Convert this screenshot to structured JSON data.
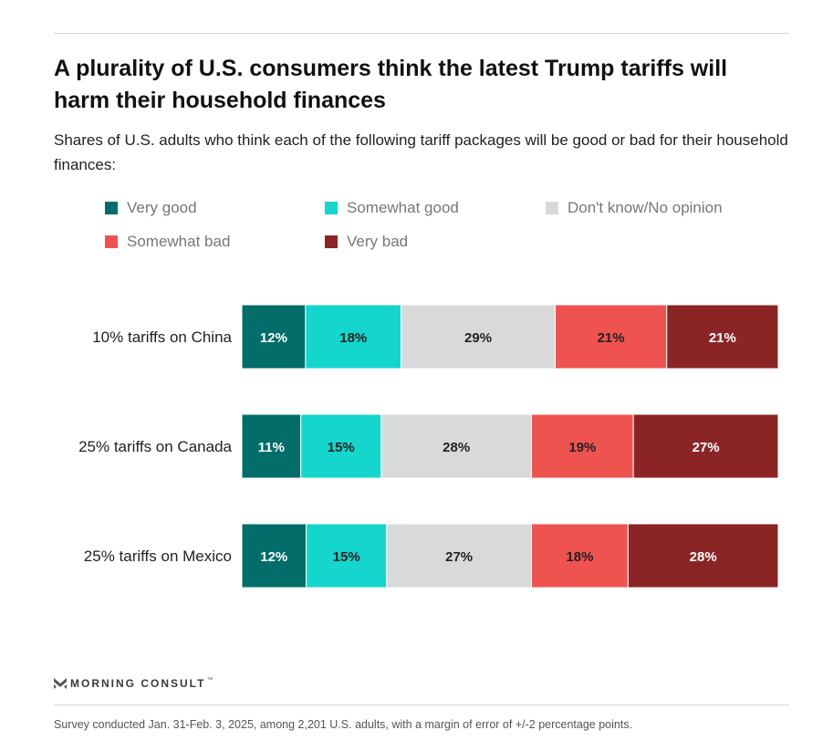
{
  "chart_title": "A plurality of U.S. consumers think the latest Trump tariffs will harm their household finances",
  "chart_subtitle": "Shares of U.S. adults who think each of the following tariff packages will be good or bad for their household finances:",
  "colors": {
    "very_good": "#036d6a",
    "somewhat_good": "#14d6cc",
    "dont_know": "#d8dada",
    "somewhat_bad": "#ef5350",
    "very_bad": "#8b2525"
  },
  "chart_data": {
    "type": "bar",
    "orientation": "horizontal",
    "stacked": true,
    "normalized": true,
    "categories": [
      "10% tariffs on China",
      "25% tariffs on Canada",
      "25% tariffs on Mexico"
    ],
    "series": [
      {
        "name": "Very good",
        "color": "#036d6a",
        "label_color": "#ffffff",
        "values": [
          12,
          11,
          12
        ]
      },
      {
        "name": "Somewhat good",
        "color": "#14d6cc",
        "label_color": "#222222",
        "values": [
          18,
          15,
          15
        ]
      },
      {
        "name": "Don't know/No opinion",
        "color": "#d8dada",
        "label_color": "#222222",
        "values": [
          29,
          28,
          27
        ]
      },
      {
        "name": "Somewhat bad",
        "color": "#ef5350",
        "label_color": "#222222",
        "values": [
          21,
          19,
          18
        ]
      },
      {
        "name": "Very bad",
        "color": "#8b2525",
        "label_color": "#ffffff",
        "values": [
          21,
          27,
          28
        ]
      }
    ],
    "value_suffix": "%",
    "legend_position": "top",
    "grid": false
  },
  "brand": {
    "name": "MORNING CONSULT",
    "mark": "™"
  },
  "footnote": "Survey conducted Jan. 31-Feb. 3, 2025, among 2,201 U.S. adults, with a margin of error of +/-2 percentage points."
}
